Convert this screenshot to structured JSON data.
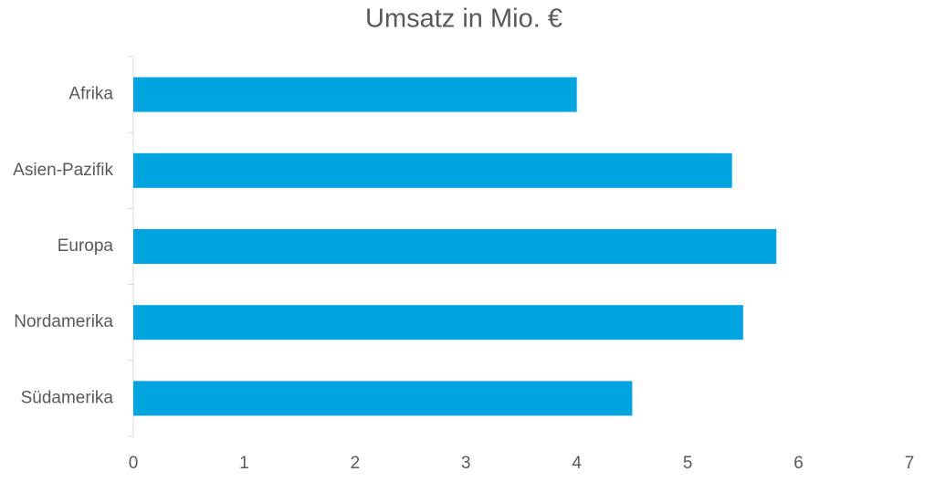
{
  "chart_data": {
    "type": "hbar",
    "title": "Umsatz in Mio. €",
    "categories": [
      "Afrika",
      "Asien-Pazifik",
      "Europa",
      "Nordamerika",
      "Südamerika"
    ],
    "values": [
      4,
      5.4,
      5.8,
      5.5,
      4.5
    ],
    "color": "#00a5e0",
    "xlim": [
      0,
      7
    ],
    "xticks": [
      0,
      1,
      2,
      3,
      4,
      5,
      6,
      7
    ],
    "grid": false
  }
}
